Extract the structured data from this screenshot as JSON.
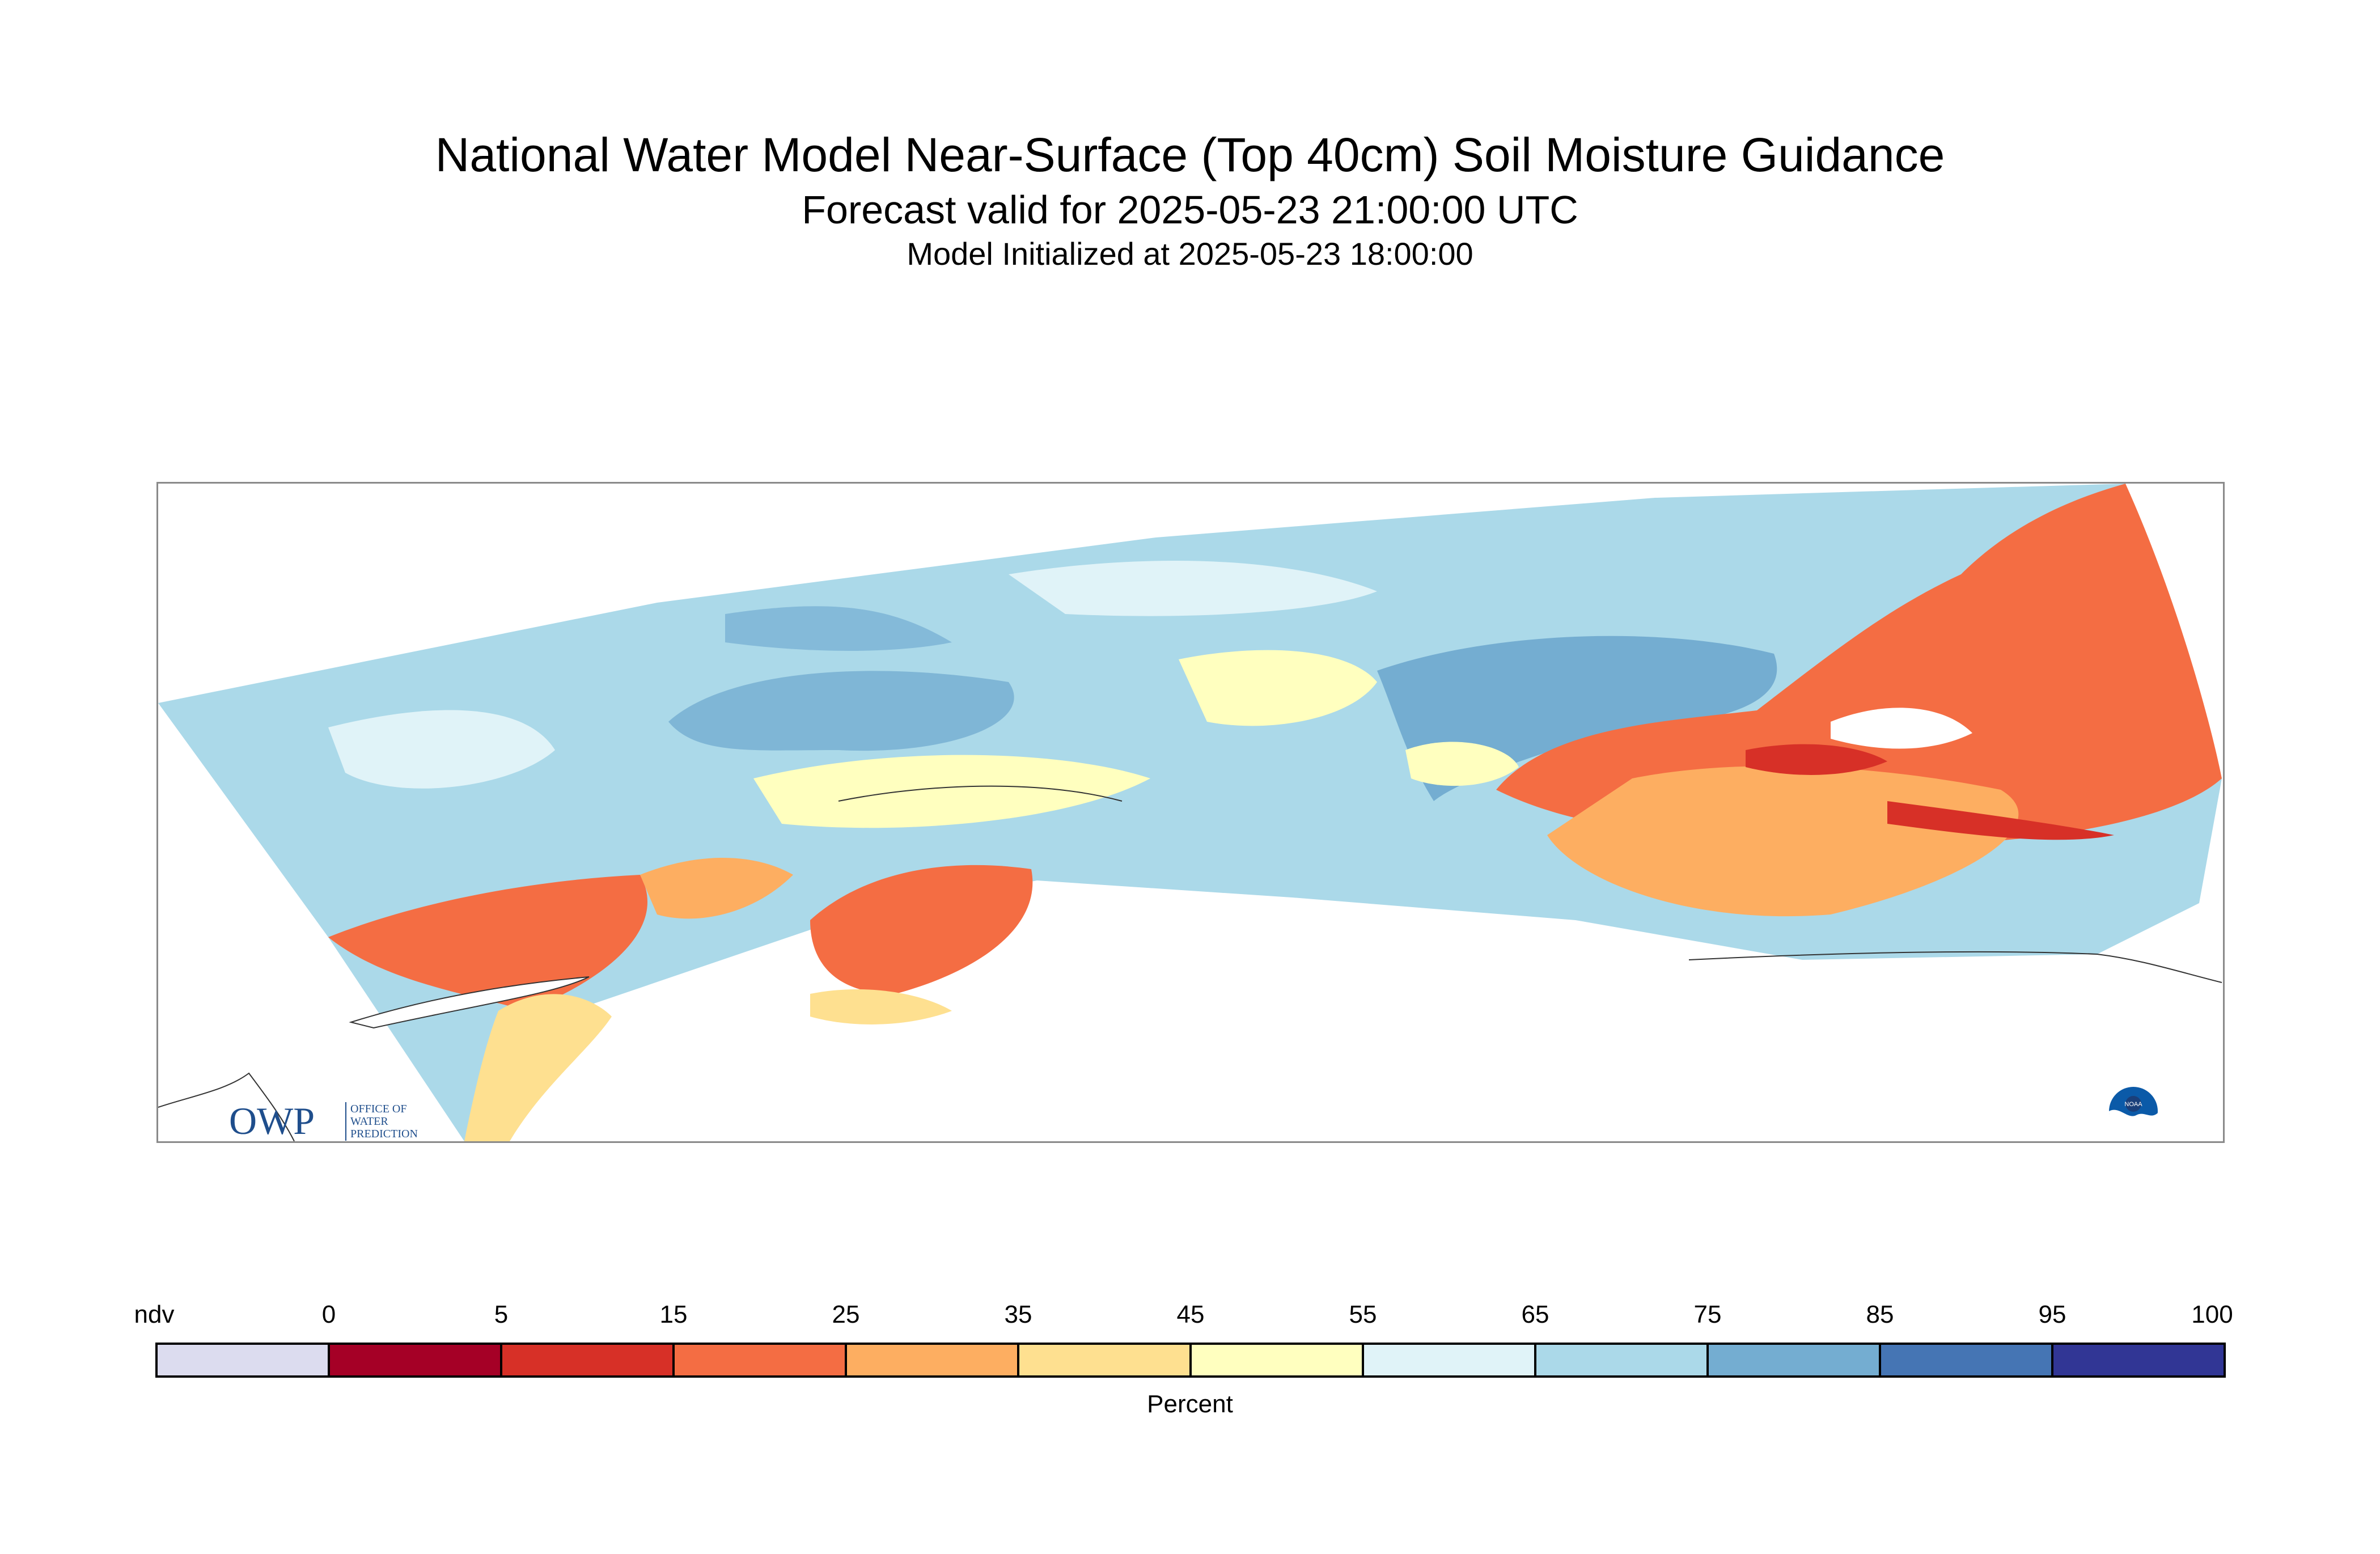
{
  "header": {
    "title": "National Water Model Near-Surface (Top 40cm) Soil Moisture Guidance",
    "subtitle": "Forecast valid for 2025-05-23 21:00:00 UTC",
    "init_line": "Model Initialized at 2025-05-23 18:00:00"
  },
  "logos": {
    "owp_mark": "OWP",
    "owp_text": [
      "OFFICE OF",
      "WATER",
      "PREDICTION"
    ],
    "noaa_text": "NOAA"
  },
  "colors": {
    "ndv": "#dcdcef",
    "c0_5": "#a50026",
    "c5_15": "#d73027",
    "c15_25": "#f46d43",
    "c25_35": "#fdae61",
    "c35_45": "#fee090",
    "c45_55": "#ffffbf",
    "c55_65": "#e0f3f8",
    "c65_75": "#abd9e9",
    "c75_85": "#74add1",
    "c85_95": "#4575b4",
    "c95_100": "#313695"
  },
  "colorbar": {
    "title": "Percent",
    "tick_labels": [
      "ndv",
      "0",
      "5",
      "15",
      "25",
      "35",
      "45",
      "55",
      "65",
      "75",
      "85",
      "95",
      "100"
    ],
    "bins": [
      {
        "color": "#dcdcef"
      },
      {
        "color": "#a50026"
      },
      {
        "color": "#d73027"
      },
      {
        "color": "#f46d43"
      },
      {
        "color": "#fdae61"
      },
      {
        "color": "#fee090"
      },
      {
        "color": "#ffffbf"
      },
      {
        "color": "#e0f3f8"
      },
      {
        "color": "#abd9e9"
      },
      {
        "color": "#74add1"
      },
      {
        "color": "#4575b4"
      },
      {
        "color": "#313695"
      }
    ]
  }
}
